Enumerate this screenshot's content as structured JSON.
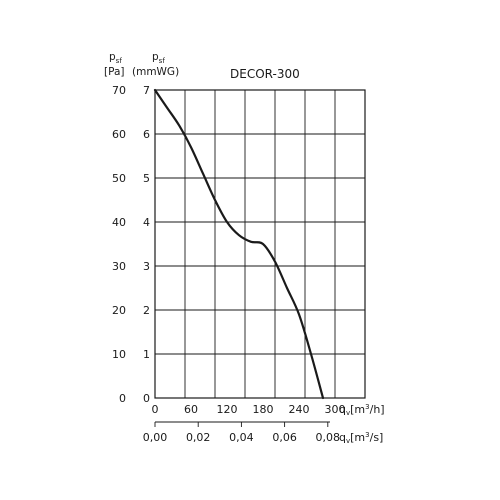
{
  "chart_data": {
    "type": "line",
    "title": "DECOR-300",
    "y_left_header": [
      "p",
      "sf",
      "[Pa]"
    ],
    "y_right_header": [
      "p",
      "sf",
      "(mmWG)"
    ],
    "y_left_ticks": [
      "0",
      "10",
      "20",
      "30",
      "40",
      "50",
      "60",
      "70"
    ],
    "y_right_ticks": [
      "0",
      "1",
      "2",
      "3",
      "4",
      "5",
      "6",
      "7"
    ],
    "x_top_ticks": [
      "0",
      "60",
      "120",
      "180",
      "240",
      "300"
    ],
    "x_bottom_ticks": [
      "0,00",
      "0,02",
      "0,04",
      "0,06",
      "0,08"
    ],
    "x_top_unit": [
      "q",
      "v",
      "[m",
      "3",
      "/h]"
    ],
    "x_bottom_unit": [
      "q",
      "v",
      "[m",
      "3",
      "/s]"
    ],
    "x_range_m3h": [
      0,
      350
    ],
    "y_range_pa": [
      0,
      70
    ],
    "grid": true,
    "series": [
      {
        "x": [
          0,
          20,
          40,
          60,
          80,
          100,
          120,
          140,
          160,
          180,
          200,
          220,
          240,
          260,
          280
        ],
        "y": [
          70,
          66,
          62,
          57,
          51,
          45,
          40,
          37,
          35.5,
          35,
          31,
          25,
          19,
          10,
          0
        ]
      }
    ]
  }
}
